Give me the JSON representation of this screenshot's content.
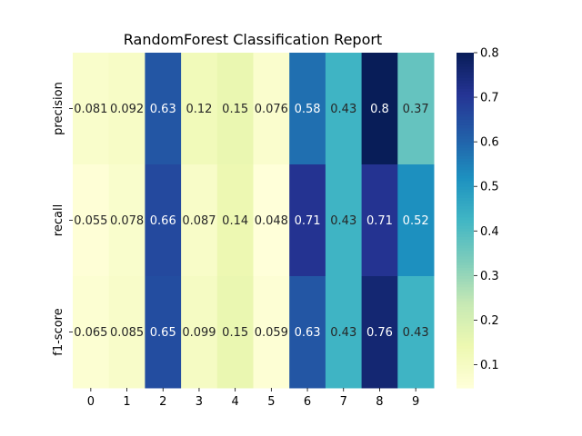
{
  "chart_data": {
    "type": "heatmap",
    "title": "RandomForest Classification Report",
    "x_categories": [
      "0",
      "1",
      "2",
      "3",
      "4",
      "5",
      "6",
      "7",
      "8",
      "9"
    ],
    "y_categories": [
      "precision",
      "recall",
      "f1-score"
    ],
    "values": [
      [
        0.081,
        0.092,
        0.63,
        0.12,
        0.15,
        0.076,
        0.58,
        0.43,
        0.8,
        0.37
      ],
      [
        0.055,
        0.078,
        0.66,
        0.087,
        0.14,
        0.048,
        0.71,
        0.43,
        0.71,
        0.52
      ],
      [
        0.065,
        0.085,
        0.65,
        0.099,
        0.15,
        0.059,
        0.63,
        0.43,
        0.76,
        0.43
      ]
    ],
    "cell_labels": [
      [
        "0.081",
        "0.092",
        "0.63",
        "0.12",
        "0.15",
        "0.076",
        "0.58",
        "0.43",
        "0.8",
        "0.37"
      ],
      [
        "0.055",
        "0.078",
        "0.66",
        "0.087",
        "0.14",
        "0.048",
        "0.71",
        "0.43",
        "0.71",
        "0.52"
      ],
      [
        "0.065",
        "0.085",
        "0.65",
        "0.099",
        "0.15",
        "0.059",
        "0.63",
        "0.43",
        "0.76",
        "0.43"
      ]
    ],
    "colormap": "YlGnBu",
    "vmin": 0.048,
    "vmax": 0.8,
    "colorbar_ticks": [
      0.1,
      0.2,
      0.3,
      0.4,
      0.5,
      0.6,
      0.7,
      0.8
    ],
    "colorbar_tick_labels": [
      "0.1",
      "0.2",
      "0.3",
      "0.4",
      "0.5",
      "0.6",
      "0.7",
      "0.8"
    ],
    "xlabel": "",
    "ylabel": ""
  }
}
